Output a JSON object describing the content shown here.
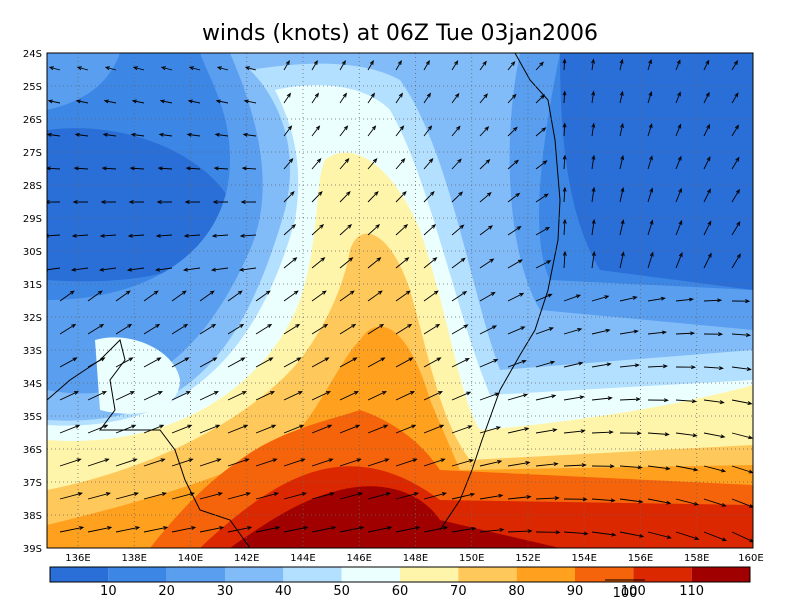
{
  "title": "winds (knots) at 06Z Tue 03jan2006",
  "lat_labels": [
    "24S",
    "25S",
    "26S",
    "27S",
    "28S",
    "29S",
    "30S",
    "31S",
    "32S",
    "33S",
    "34S",
    "35S",
    "36S",
    "37S",
    "38S",
    "39S"
  ],
  "lon_labels": [
    "136E",
    "138E",
    "140E",
    "142E",
    "144E",
    "146E",
    "148E",
    "150E",
    "152E",
    "154E",
    "156E",
    "158E",
    "160E"
  ],
  "colorbar": {
    "colors": [
      "#2a6ed8",
      "#3c87e6",
      "#5a9ef0",
      "#82bcf8",
      "#b4e0ff",
      "#ecffff",
      "#fff5aa",
      "#ffc85a",
      "#ffa01e",
      "#f5640a",
      "#dc2800",
      "#a00000"
    ],
    "labels": [
      10,
      20,
      30,
      40,
      50,
      60,
      70,
      80,
      90,
      100,
      110
    ]
  },
  "reference_vector": "100"
}
